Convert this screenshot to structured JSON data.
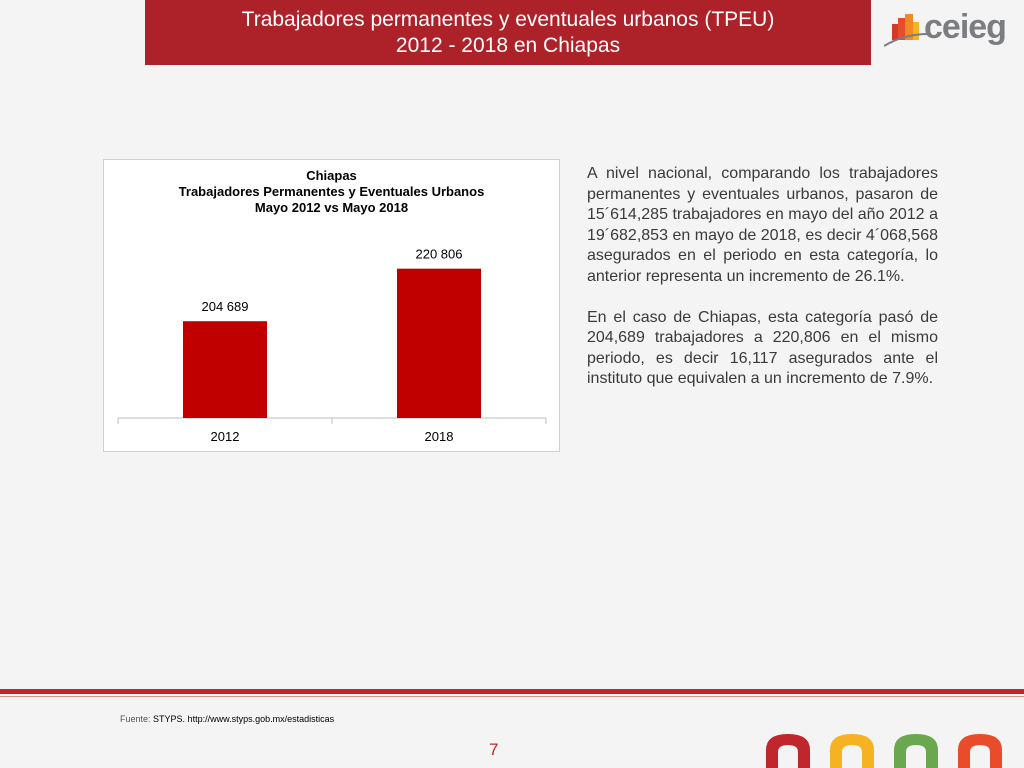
{
  "header": {
    "title_line1": "Trabajadores permanentes y eventuales urbanos (TPEU)",
    "title_line2": "2012 - 2018 en Chiapas",
    "logo_text": "ceieg"
  },
  "chart_data": {
    "type": "bar",
    "title": [
      "Chiapas",
      "Trabajadores Permanentes y Eventuales Urbanos",
      "Mayo 2012 vs Mayo 2018"
    ],
    "categories": [
      "2012",
      "2018"
    ],
    "values": [
      204689,
      220806
    ],
    "value_labels": [
      "204 689",
      "220 806"
    ],
    "ylim": [
      175000,
      225000
    ],
    "bar_color": "#c00000",
    "grid": false,
    "legend": "none"
  },
  "body": {
    "paragraph1": "A nivel nacional, comparando los trabajadores permanentes y eventuales urbanos, pasaron de 15´614,285 trabajadores en mayo del año 2012 a 19´682,853 en mayo de 2018, es decir 4´068,568 asegurados en el periodo en esta categoría, lo anterior representa un incremento de 26.1%.",
    "paragraph2": "En el caso de Chiapas, esta categoría pasó de 204,689 trabajadores a 220,806 en el mismo periodo, es decir 16,117 asegurados ante el instituto que equivalen a un incremento de 7.9%."
  },
  "footer": {
    "source_label": "Fuente:",
    "source_text": "STYPS. http://www.styps.gob.mx/estadisticas",
    "page_number": "7"
  },
  "colors": {
    "banner": "#ad2229",
    "accent_red": "#c0272d",
    "bar": "#c00000"
  }
}
